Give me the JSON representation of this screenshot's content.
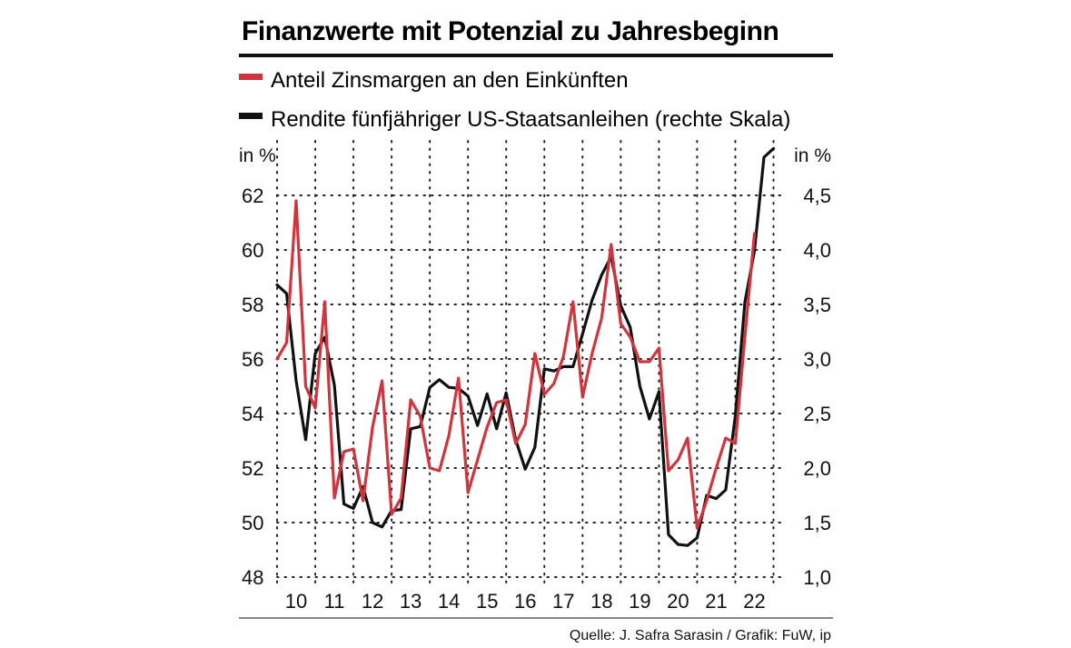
{
  "chart_data": {
    "type": "line",
    "title": "Finanzwerte mit Potenzial zu Jahresbeginn",
    "source": "Quelle: J. Safra Sarasin / Grafik: FuW, ip",
    "left_unit": "in %",
    "right_unit": "in %",
    "x_labels": [
      "10",
      "11",
      "12",
      "13",
      "14",
      "15",
      "16",
      "17",
      "18",
      "19",
      "20",
      "21",
      "22"
    ],
    "x_range": [
      2009.5,
      2022.75
    ],
    "left_axis": {
      "range": [
        48,
        63.5
      ],
      "ticks": [
        48,
        50,
        52,
        54,
        56,
        58,
        60,
        62
      ],
      "tick_labels": [
        "48",
        "50",
        "52",
        "54",
        "56",
        "58",
        "60",
        "62"
      ]
    },
    "right_axis": {
      "range": [
        1.0,
        5.0
      ],
      "ticks": [
        1.0,
        1.5,
        2.0,
        2.5,
        3.0,
        3.5,
        4.0,
        4.5
      ],
      "tick_labels": [
        "1,0",
        "1,5",
        "2,0",
        "2,5",
        "3,0",
        "3,5",
        "4,0",
        "4,5"
      ]
    },
    "grid": "dotted",
    "series": [
      {
        "name": "Anteil Zinsmargen an den Einkünften",
        "axis": "left",
        "color": "#d0343c",
        "x": [
          2009.5,
          2009.75,
          2010.0,
          2010.25,
          2010.5,
          2010.75,
          2011.0,
          2011.25,
          2011.5,
          2011.75,
          2012.0,
          2012.25,
          2012.5,
          2012.75,
          2013.0,
          2013.25,
          2013.5,
          2013.75,
          2014.0,
          2014.25,
          2014.5,
          2014.75,
          2015.0,
          2015.25,
          2015.5,
          2015.75,
          2016.0,
          2016.25,
          2016.5,
          2016.75,
          2017.0,
          2017.25,
          2017.5,
          2017.75,
          2018.0,
          2018.25,
          2018.5,
          2018.75,
          2019.0,
          2019.25,
          2019.5,
          2019.75,
          2020.0,
          2020.25,
          2020.5,
          2020.75,
          2021.0,
          2021.25,
          2021.5,
          2021.75,
          2022.0
        ],
        "values": [
          56.0,
          56.6,
          61.8,
          55.0,
          54.2,
          58.1,
          50.9,
          52.6,
          52.7,
          50.8,
          53.5,
          55.2,
          50.3,
          50.9,
          54.5,
          53.9,
          52.0,
          51.9,
          53.2,
          55.3,
          51.1,
          52.3,
          53.5,
          54.4,
          54.5,
          52.9,
          53.6,
          56.2,
          54.7,
          55.1,
          56.1,
          58.1,
          54.6,
          56.2,
          57.5,
          60.2,
          57.3,
          56.8,
          55.9,
          55.9,
          56.4,
          51.9,
          52.3,
          53.1,
          49.8,
          50.8,
          52.0,
          53.1,
          52.9,
          56.8,
          60.6
        ]
      },
      {
        "name": "Rendite fünfjähriger US-Staatsanleihen (rechte Skala)",
        "axis": "right",
        "color": "#111111",
        "x": [
          2009.5,
          2009.75,
          2010.0,
          2010.25,
          2010.5,
          2010.75,
          2011.0,
          2011.25,
          2011.5,
          2011.75,
          2012.0,
          2012.25,
          2012.5,
          2012.75,
          2013.0,
          2013.25,
          2013.5,
          2013.75,
          2014.0,
          2014.25,
          2014.5,
          2014.75,
          2015.0,
          2015.25,
          2015.5,
          2015.75,
          2016.0,
          2016.25,
          2016.5,
          2016.75,
          2017.0,
          2017.25,
          2017.5,
          2017.75,
          2018.0,
          2018.25,
          2018.5,
          2018.75,
          2019.0,
          2019.25,
          2019.5,
          2019.75,
          2020.0,
          2020.25,
          2020.5,
          2020.75,
          2021.0,
          2021.25,
          2021.5,
          2021.75,
          2022.0,
          2022.25,
          2022.5
        ],
        "values": [
          3.68,
          3.6,
          2.8,
          2.26,
          3.05,
          3.2,
          2.76,
          1.67,
          1.63,
          1.83,
          1.5,
          1.46,
          1.61,
          1.62,
          2.36,
          2.38,
          2.74,
          2.81,
          2.74,
          2.73,
          2.66,
          2.39,
          2.68,
          2.36,
          2.69,
          2.26,
          1.99,
          2.19,
          2.91,
          2.89,
          2.93,
          2.93,
          3.23,
          3.54,
          3.77,
          3.94,
          3.49,
          3.29,
          2.75,
          2.45,
          2.7,
          1.39,
          1.3,
          1.29,
          1.36,
          1.75,
          1.72,
          1.8,
          2.48,
          3.52,
          3.99,
          4.85,
          4.93
        ]
      }
    ]
  }
}
